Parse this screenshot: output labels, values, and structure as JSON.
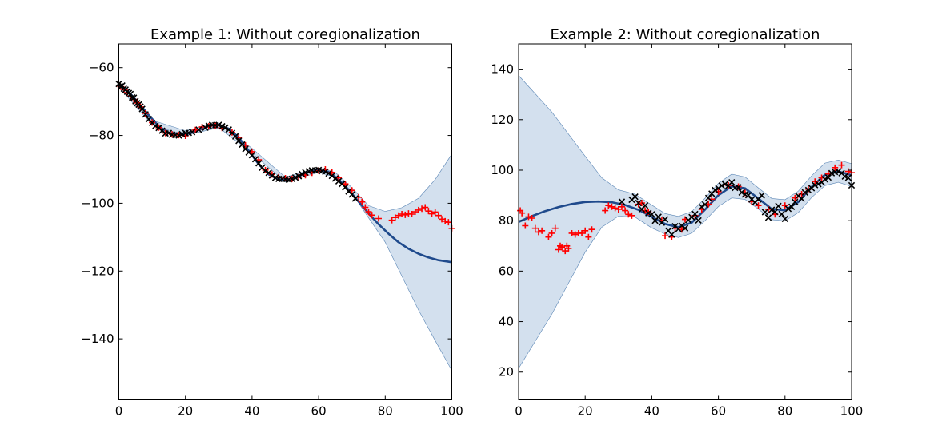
{
  "chart_data": [
    {
      "type": "line",
      "title": "Example 1: Without coregionalization",
      "xlabel": "",
      "ylabel": "",
      "xlim": [
        0,
        100
      ],
      "ylim": [
        -158,
        -53
      ],
      "xticks": [
        0,
        20,
        40,
        60,
        80,
        100
      ],
      "xtick_labels": [
        "0",
        "20",
        "40",
        "60",
        "80",
        "100"
      ],
      "yticks": [
        -60,
        -80,
        -100,
        -120,
        -140
      ],
      "ytick_labels": [
        "−60",
        "−80",
        "−100",
        "−120",
        "−140"
      ],
      "grid": false,
      "legend": "none",
      "colors": {
        "mean": "#1f4a8c",
        "band": "#d3e0ee",
        "band_edge": "#5b86b5",
        "black_series": "#000000",
        "red_series": "#ff0000"
      },
      "mean": {
        "x": [
          0,
          3,
          6,
          9,
          12,
          15,
          18,
          21,
          24,
          27,
          30,
          33,
          36,
          39,
          42,
          45,
          48,
          51,
          54,
          57,
          60,
          63,
          66,
          69,
          72,
          75,
          78,
          81,
          84,
          87,
          90,
          93,
          96,
          100
        ],
        "y": [
          -65,
          -67.2,
          -70.5,
          -74,
          -77.3,
          -79.2,
          -79.7,
          -79.4,
          -78.4,
          -77.2,
          -77,
          -78,
          -80.6,
          -84.5,
          -88.5,
          -91.5,
          -93,
          -93,
          -92,
          -90.8,
          -90.2,
          -90.8,
          -93,
          -96,
          -99.5,
          -103,
          -106.2,
          -109,
          -111.5,
          -113.4,
          -114.9,
          -116,
          -116.8,
          -117.4
        ]
      },
      "band": {
        "x": [
          0,
          10,
          20,
          30,
          40,
          50,
          60,
          65,
          70,
          75,
          80,
          85,
          90,
          95,
          100
        ],
        "upper": [
          -64.3,
          -75.5,
          -78.6,
          -76.3,
          -83.8,
          -92.3,
          -89.5,
          -90.9,
          -95.4,
          -100.7,
          -102.4,
          -101.3,
          -98.5,
          -93,
          -85.5
        ],
        "lower": [
          -65.7,
          -76.9,
          -80,
          -77.7,
          -85.2,
          -93.7,
          -90.9,
          -92.3,
          -97,
          -104.3,
          -111.5,
          -121.5,
          -131.5,
          -140.5,
          -149.3
        ]
      },
      "points_black": {
        "x": [
          0,
          0.5,
          1,
          1.5,
          2,
          2.5,
          3,
          3.5,
          4,
          4.5,
          5,
          5.5,
          6,
          6.5,
          7,
          8,
          9,
          10,
          11,
          12,
          13,
          14,
          15,
          16,
          17,
          18,
          19,
          20,
          21,
          22,
          24,
          26,
          27,
          28,
          29,
          30,
          31,
          32,
          33,
          34,
          35,
          36,
          37,
          38,
          39,
          40,
          41,
          42,
          43,
          44,
          45,
          46,
          47,
          48,
          49,
          50,
          51,
          52,
          53,
          54,
          55,
          56,
          57,
          58,
          59,
          60,
          61,
          62,
          63,
          64,
          65,
          66,
          67,
          68,
          69,
          70,
          71
        ],
        "y": [
          -64.8,
          -65.6,
          -65.3,
          -66.2,
          -66.5,
          -67.1,
          -67.5,
          -67.8,
          -68.8,
          -68.9,
          -69.9,
          -70.5,
          -70.9,
          -71.5,
          -72.2,
          -73.8,
          -75.2,
          -76.3,
          -77.2,
          -77.8,
          -78.6,
          -79.4,
          -79.3,
          -79.8,
          -79.9,
          -80,
          -79.6,
          -79.3,
          -79.2,
          -79,
          -78.3,
          -77.7,
          -77.1,
          -76.9,
          -77,
          -76.9,
          -77.3,
          -77.7,
          -78.3,
          -79.3,
          -80.3,
          -81.6,
          -82.7,
          -84,
          -85,
          -85.8,
          -87,
          -88.2,
          -89.5,
          -90.4,
          -91,
          -91.8,
          -92.5,
          -92.8,
          -92.8,
          -92.9,
          -93,
          -92.8,
          -92.4,
          -92,
          -91.4,
          -90.9,
          -90.6,
          -90.3,
          -90.3,
          -90.2,
          -90.5,
          -90.7,
          -91.2,
          -91.9,
          -92.7,
          -93.5,
          -94.3,
          -95.3,
          -96.5,
          -97.4,
          -98.6
        ]
      },
      "points_red": {
        "x": [
          0.5,
          1.5,
          2.5,
          3.5,
          4.5,
          5.5,
          6.5,
          8,
          10,
          12,
          14,
          16,
          18,
          20,
          23,
          25,
          27,
          29,
          31,
          34,
          36,
          38,
          40,
          42,
          44,
          46,
          48,
          50,
          52,
          54,
          56,
          58,
          60,
          62,
          64,
          66,
          68,
          70,
          72,
          73,
          74,
          75,
          76,
          78,
          82,
          83,
          84,
          85,
          86,
          87,
          88,
          89,
          90,
          91,
          92,
          93,
          94,
          95,
          96,
          97,
          98,
          99,
          100
        ],
        "y": [
          -65.6,
          -66.4,
          -67.4,
          -68.6,
          -69.4,
          -70.4,
          -71.6,
          -73.5,
          -76.2,
          -77.7,
          -79.3,
          -79.7,
          -79.9,
          -80.1,
          -78.4,
          -77.5,
          -77.3,
          -77.1,
          -77.8,
          -79.1,
          -80.6,
          -82.9,
          -84.8,
          -87.2,
          -90.2,
          -91.5,
          -92.3,
          -92.6,
          -92.8,
          -92.3,
          -91.7,
          -91,
          -90.4,
          -90,
          -90.9,
          -92.5,
          -94.3,
          -96.2,
          -98.2,
          -99.6,
          -101.2,
          -102.5,
          -103.5,
          -104.5,
          -105,
          -104.2,
          -103.6,
          -103.2,
          -103.4,
          -103,
          -103.2,
          -102.5,
          -102,
          -101.6,
          -101.2,
          -102.3,
          -103.1,
          -102.6,
          -103.6,
          -104.7,
          -105.3,
          -105.6,
          -107.4
        ]
      }
    },
    {
      "type": "line",
      "title": "Example 2: Without coregionalization",
      "xlabel": "",
      "ylabel": "",
      "xlim": [
        0,
        100
      ],
      "ylim": [
        9,
        150
      ],
      "xticks": [
        0,
        20,
        40,
        60,
        80,
        100
      ],
      "xtick_labels": [
        "0",
        "20",
        "40",
        "60",
        "80",
        "100"
      ],
      "yticks": [
        20,
        40,
        60,
        80,
        100,
        120,
        140
      ],
      "ytick_labels": [
        "20",
        "40",
        "60",
        "80",
        "100",
        "120",
        "140"
      ],
      "grid": false,
      "legend": "none",
      "colors": {
        "mean": "#1f4a8c",
        "band": "#d3e0ee",
        "band_edge": "#5b86b5",
        "black_series": "#000000",
        "red_series": "#ff0000"
      },
      "mean": {
        "x": [
          0,
          4,
          8,
          12,
          16,
          20,
          24,
          28,
          32,
          36,
          40,
          44,
          48,
          52,
          56,
          60,
          64,
          68,
          72,
          76,
          80,
          84,
          88,
          92,
          96,
          100
        ],
        "y": [
          79.5,
          81.8,
          83.8,
          85.4,
          86.6,
          87.4,
          87.6,
          87.3,
          86.2,
          84.3,
          81.5,
          78.7,
          77.4,
          79.2,
          84.4,
          90.1,
          93.6,
          92.8,
          88.8,
          84.6,
          84.1,
          87.4,
          93.4,
          98.2,
          99.5,
          98
        ]
      },
      "band": {
        "x": [
          0,
          10,
          20,
          25,
          30,
          35,
          40,
          44,
          48,
          52,
          56,
          60,
          64,
          68,
          72,
          76,
          80,
          84,
          88,
          92,
          96,
          100
        ],
        "upper": [
          137.5,
          123,
          105.5,
          97,
          92.2,
          90.5,
          86.2,
          82.8,
          81.7,
          83.6,
          88.9,
          94.8,
          98.4,
          97.3,
          93,
          88.8,
          88.3,
          91.7,
          97.8,
          102.8,
          104,
          102.6
        ],
        "lower": [
          21.5,
          43,
          67.5,
          77.4,
          81.8,
          81.4,
          77.1,
          74.7,
          73.3,
          75,
          80,
          85.6,
          89,
          88.4,
          84.6,
          80.4,
          79.9,
          83.2,
          89.2,
          93.9,
          95.2,
          93.5
        ]
      },
      "points_black": {
        "x": [
          31,
          34,
          35,
          36,
          37,
          38,
          39,
          40,
          41,
          42,
          43,
          44,
          45,
          46,
          47,
          48,
          49,
          50,
          51,
          52,
          53,
          54,
          55,
          56,
          57,
          58,
          59,
          60,
          61,
          62,
          63,
          64,
          65,
          66,
          67,
          68,
          69,
          70,
          71,
          72,
          73,
          74,
          75,
          76,
          77,
          78,
          79,
          80,
          81,
          82,
          83,
          84,
          85,
          86,
          87,
          88,
          89,
          90,
          91,
          92,
          93,
          94,
          95,
          96,
          97,
          98,
          99,
          100
        ],
        "y": [
          87.5,
          88.3,
          89.5,
          87,
          84.5,
          86,
          83,
          82.5,
          80,
          81.5,
          79.2,
          80.5,
          76,
          74.5,
          77.8,
          76.7,
          78,
          77,
          80.2,
          81.4,
          82.6,
          80.1,
          85.5,
          86.4,
          89,
          90.7,
          92.1,
          92.8,
          93.9,
          94.5,
          93.8,
          95.2,
          93,
          93.2,
          91.2,
          90.4,
          90.1,
          88.4,
          87.3,
          88.4,
          90,
          83.4,
          81.2,
          84.3,
          83.5,
          85.8,
          82.6,
          80.7,
          84.7,
          85.5,
          87.4,
          89.8,
          88.7,
          91.2,
          92.1,
          92.9,
          94.1,
          94.5,
          95.2,
          96.4,
          97.1,
          98.8,
          99.3,
          99.5,
          98.8,
          97.5,
          97,
          94
        ]
      },
      "points_red": {
        "x": [
          0.5,
          1,
          2,
          3,
          4,
          5,
          6,
          7,
          9,
          10,
          11,
          12,
          12.5,
          13,
          14,
          14.5,
          15,
          16,
          17,
          18,
          19,
          20,
          21,
          22,
          26,
          27,
          28,
          29,
          30,
          31,
          32,
          33,
          34,
          36,
          37,
          38,
          39,
          43,
          44,
          46,
          47,
          49,
          50,
          53,
          55,
          57,
          58,
          60,
          63,
          66,
          68,
          70,
          72,
          75,
          77,
          80,
          83,
          85,
          87,
          89,
          91,
          93,
          95,
          97,
          99,
          100
        ],
        "y": [
          84,
          83,
          78,
          81.5,
          81,
          77,
          75.5,
          76,
          73.5,
          75,
          77,
          68.5,
          70,
          69.5,
          68,
          70,
          69,
          75,
          74.5,
          75,
          75,
          76,
          73.5,
          76.5,
          84,
          86,
          85.5,
          85,
          84.5,
          85.5,
          84,
          82.5,
          82,
          86.5,
          87,
          84,
          83.5,
          80,
          74,
          73.5,
          77,
          76.5,
          80.5,
          82,
          84.5,
          86.5,
          88.5,
          91.5,
          94,
          93.5,
          91,
          87.5,
          86,
          84.5,
          82.5,
          86,
          89,
          90.5,
          92.5,
          95.5,
          97,
          98.5,
          101,
          102,
          99.5,
          99
        ]
      }
    }
  ]
}
